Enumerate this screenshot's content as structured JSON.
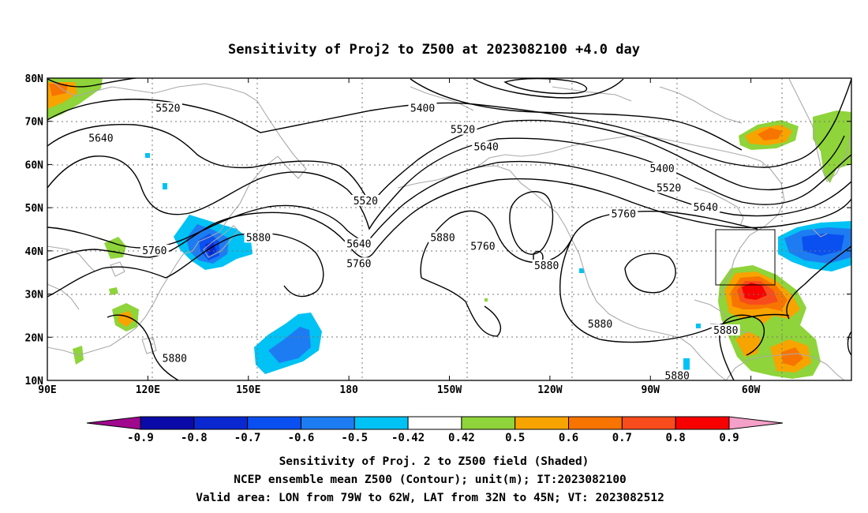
{
  "title": "Sensitivity of Proj2 to Z500 at 2023082100 +4.0 day",
  "map": {
    "lat_labels": [
      "80N",
      "70N",
      "60N",
      "50N",
      "40N",
      "30N",
      "20N",
      "10N"
    ],
    "lon_labels": [
      "90E",
      "120E",
      "150E",
      "180",
      "150W",
      "120W",
      "90W",
      "60W"
    ],
    "contour_labels": [
      {
        "text": "5520",
        "lon": 126,
        "lat": 73
      },
      {
        "text": "5640",
        "lon": 106,
        "lat": 66
      },
      {
        "text": "5400",
        "lon": -158,
        "lat": 73
      },
      {
        "text": "5520",
        "lon": -146,
        "lat": 68
      },
      {
        "text": "5640",
        "lon": -139,
        "lat": 64
      },
      {
        "text": "5400",
        "lon": -86.5,
        "lat": 59
      },
      {
        "text": "5520",
        "lon": -84.5,
        "lat": 54.5
      },
      {
        "text": "5640",
        "lon": -73.5,
        "lat": 50
      },
      {
        "text": "5760",
        "lon": -98,
        "lat": 48.5
      },
      {
        "text": "5520",
        "lon": -175,
        "lat": 51.5
      },
      {
        "text": "5640",
        "lon": -177,
        "lat": 41.5
      },
      {
        "text": "5760",
        "lon": -177,
        "lat": 37
      },
      {
        "text": "5880",
        "lon": 153,
        "lat": 43
      },
      {
        "text": "5760",
        "lon": 122,
        "lat": 40
      },
      {
        "text": "5880",
        "lon": -152,
        "lat": 43
      },
      {
        "text": "5760",
        "lon": -140,
        "lat": 41
      },
      {
        "text": "5880",
        "lon": -121,
        "lat": 36.5
      },
      {
        "text": "5880",
        "lon": -105,
        "lat": 23
      },
      {
        "text": "5880",
        "lon": -67.5,
        "lat": 21.5
      },
      {
        "text": "5880",
        "lon": 128,
        "lat": 15
      },
      {
        "text": "5880",
        "lon": -82,
        "lat": 11
      }
    ],
    "valid_box": {
      "lon_min": -79,
      "lon_max": -62,
      "lat_min": 32,
      "lat_max": 45
    }
  },
  "colorbar": {
    "labels": [
      "-0.9",
      "-0.8",
      "-0.7",
      "-0.6",
      "-0.5",
      "-0.42",
      "0.42",
      "0.5",
      "0.6",
      "0.7",
      "0.8",
      "0.9"
    ],
    "colors": [
      "#a0088e",
      "#0a0aa8",
      "#0a28d0",
      "#0a50f0",
      "#1e7cf2",
      "#00c2f4",
      "#ffffff",
      "#8ed43a",
      "#f8a400",
      "#f87400",
      "#f84c1c",
      "#f80000",
      "#f4a0c8"
    ]
  },
  "footer": {
    "line1": "Sensitivity of Proj. 2 to Z500 field (Shaded)",
    "line2": "NCEP ensemble mean Z500 (Contour); unit(m); IT:2023082100",
    "line3": "Valid area: LON from 79W to 62W, LAT from 32N to 45N; VT: 2023082512"
  }
}
